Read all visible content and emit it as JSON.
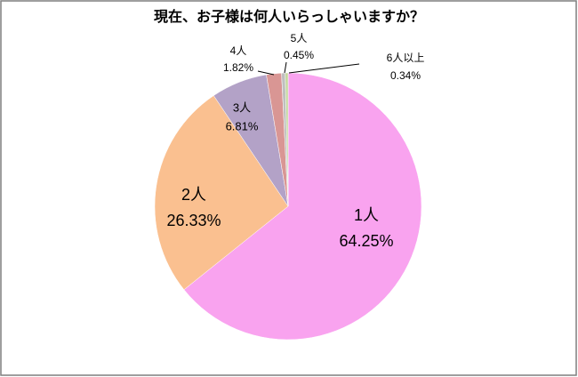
{
  "chart_data": {
    "type": "pie",
    "title": "現在、お子様は何人いらっしゃいますか？",
    "categories": [
      "1人",
      "2人",
      "3人",
      "4人",
      "5人",
      "6人以上"
    ],
    "values": [
      64.25,
      26.33,
      6.81,
      1.82,
      0.45,
      0.34
    ],
    "value_labels": [
      "64.25%",
      "26.33%",
      "6.81%",
      "1.82%",
      "0.45%",
      "0.34%"
    ],
    "colors": [
      "#f9a3ef",
      "#fac090",
      "#b3a2c7",
      "#d99694",
      "#bfbfbf",
      "#c3d69b"
    ]
  }
}
